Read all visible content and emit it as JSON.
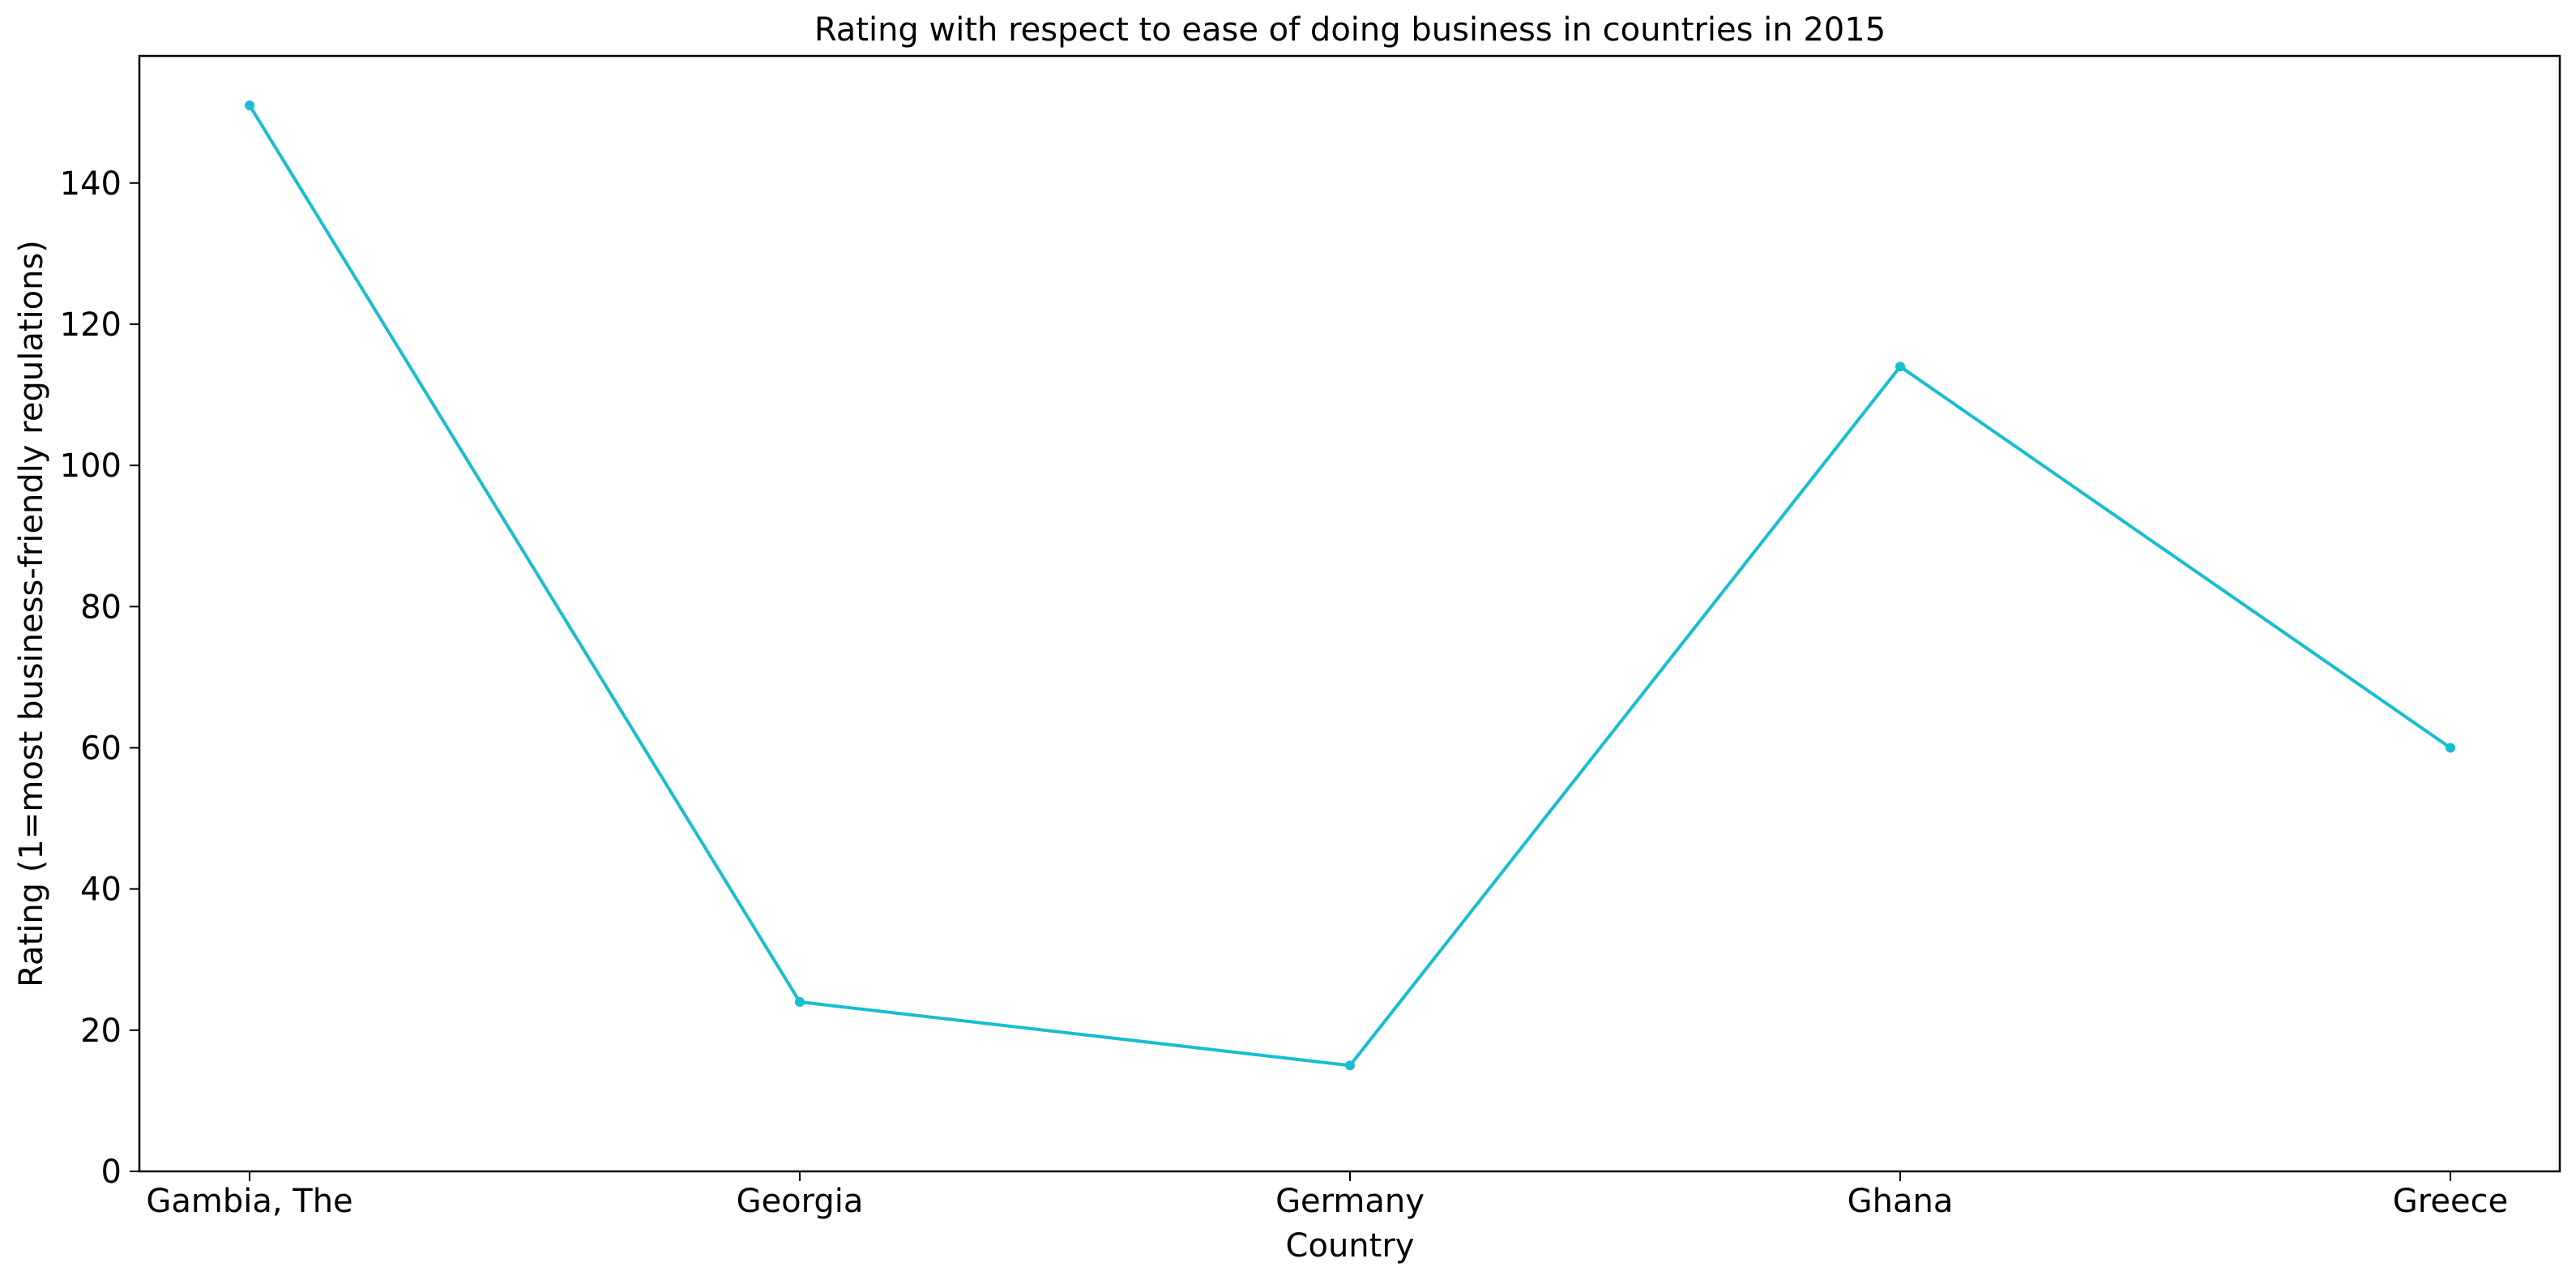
{
  "chart_data": {
    "type": "line",
    "title": "Rating with respect to ease of doing business in countries in 2015",
    "xlabel": "Country",
    "ylabel": "Rating (1=most business-friendly regulations)",
    "categories": [
      "Gambia, The",
      "Georgia",
      "Germany",
      "Ghana",
      "Greece"
    ],
    "series": [
      {
        "values": [
          151,
          24,
          15,
          114,
          60
        ],
        "color": "#17becf"
      }
    ],
    "ylim": [
      0,
      158
    ],
    "yticks": [
      0,
      20,
      40,
      60,
      80,
      100,
      120,
      140
    ],
    "grid": false,
    "legend": "none"
  }
}
